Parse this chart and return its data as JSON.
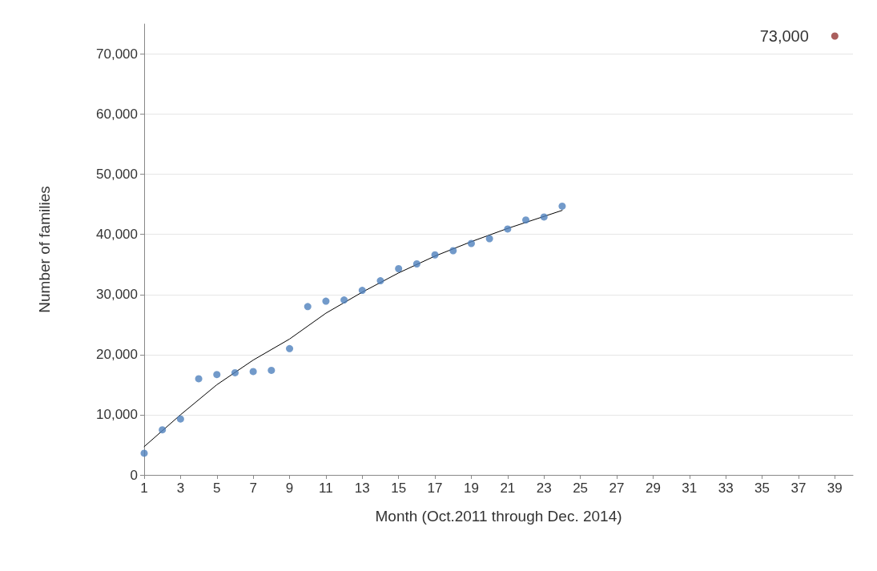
{
  "chart_data": {
    "type": "scatter",
    "xlabel": "Month (Oct.2011 through Dec. 2014)",
    "ylabel": "Number of families",
    "xlim": [
      1,
      40
    ],
    "xticks": [
      1,
      3,
      5,
      7,
      9,
      11,
      13,
      15,
      17,
      19,
      21,
      23,
      25,
      27,
      29,
      31,
      33,
      35,
      37,
      39
    ],
    "ylim": [
      0,
      75000
    ],
    "yticks": [
      {
        "value": 0,
        "label": "0"
      },
      {
        "value": 10000,
        "label": "10,000"
      },
      {
        "value": 20000,
        "label": "20,000"
      },
      {
        "value": 30000,
        "label": "30,000"
      },
      {
        "value": 40000,
        "label": "40,000"
      },
      {
        "value": 50000,
        "label": "50,000"
      },
      {
        "value": 60000,
        "label": "60,000"
      },
      {
        "value": 70000,
        "label": "70,000"
      }
    ],
    "grid": "y",
    "marker": "circle",
    "series": [
      {
        "color": "#4f81bd",
        "x": [
          1,
          2,
          3,
          4,
          5,
          6,
          7,
          8,
          9,
          10,
          11,
          12,
          13,
          14,
          15,
          16,
          17,
          18,
          19,
          20,
          21,
          22,
          23,
          24
        ],
        "values": [
          3600,
          7500,
          9300,
          16000,
          16700,
          17000,
          17200,
          17400,
          21000,
          28000,
          28900,
          29100,
          30700,
          32300,
          34300,
          35100,
          36600,
          37300,
          38500,
          39300,
          40900,
          42400,
          42900,
          44700
        ]
      },
      {
        "type": "line",
        "color": "#000000",
        "line_style": "solid",
        "marker": "none",
        "x": [
          1,
          3,
          5,
          7,
          9,
          11,
          13,
          15,
          17,
          19,
          21,
          24
        ],
        "values": [
          4700,
          10000,
          15000,
          19100,
          22600,
          26900,
          30400,
          33600,
          36400,
          38800,
          41000,
          44000
        ]
      },
      {
        "color": "#953735",
        "x": [
          39
        ],
        "values": [
          73000
        ],
        "value_labels": [
          "73,000"
        ]
      }
    ]
  }
}
